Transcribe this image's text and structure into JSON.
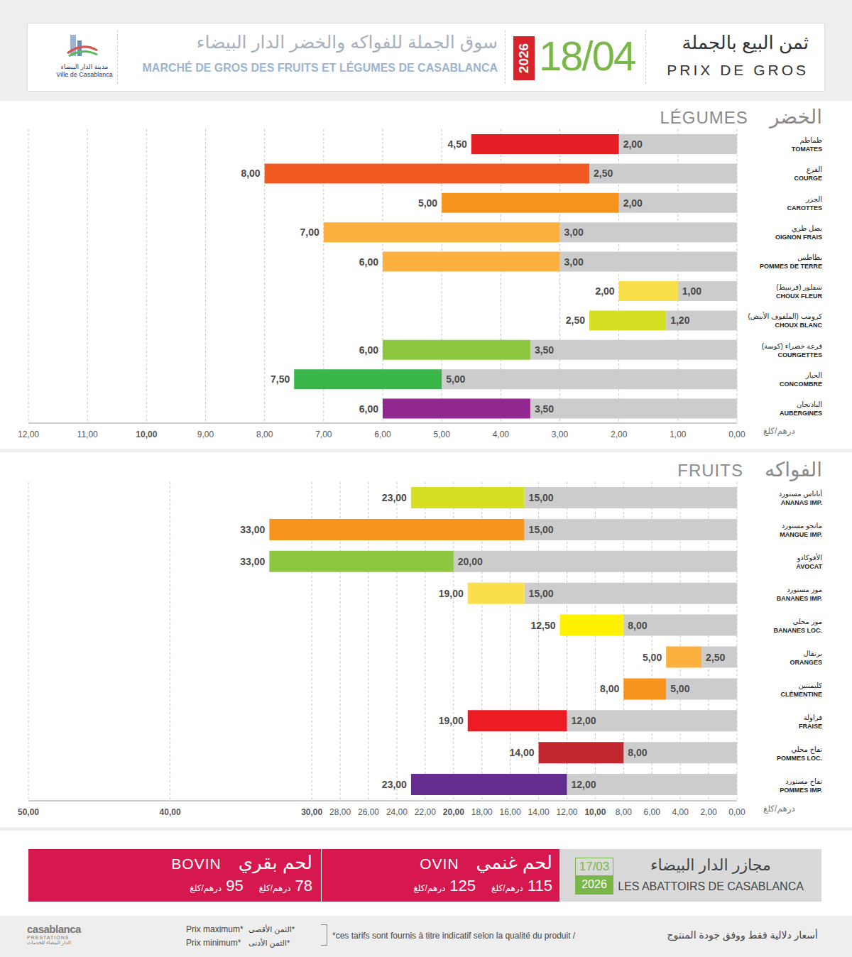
{
  "header": {
    "logo": [
      "مدينة الدار البيضاء",
      "Ville de Casablanca"
    ],
    "title_ar": "سوق الجملة للفواكه والخضر الدار البيضاء",
    "title_fr": "MARCHÉ DE GROS DES FRUITS ET LÉGUMES DE CASABLANCA",
    "year": "2026",
    "date": "18/04",
    "label_ar": "ثمن البيع بالجملة",
    "label_fr": "PRIX DE GROS"
  },
  "chart_data": [
    {
      "type": "bar",
      "orientation": "horizontal",
      "title": "LÉGUMES",
      "title_ar": "الخضر",
      "x_label": "درهم/كلغ",
      "categories": [
        "TOMATES",
        "COURGE",
        "CAROTTES",
        "OIGNON FRAIS",
        "POMMES DE TERRE",
        "CHOUX FLEUR",
        "CHOUX BLANC",
        "COURGETTES",
        "CONCOMBRE",
        "AUBERGINES"
      ],
      "categories_ar": [
        "طماطم",
        "القرع",
        "الجزر",
        "بصل طري",
        "بطاطس",
        "شفلور (قرنبيط)",
        "كرومب (الملفوف الأبيض)",
        "قرعة خضراء (كوسة)",
        "الخيار",
        "الباذنجان"
      ],
      "series": [
        {
          "color": "#cccccc",
          "values": [
            2,
            2.5,
            2,
            3,
            3,
            1,
            1.2,
            3.5,
            5,
            3.5
          ],
          "value_labels": [
            "2,00",
            "2,50",
            "2,00",
            "3,00",
            "3,00",
            "1,00",
            "1,20",
            "3,50",
            "5,00",
            "3,50"
          ]
        },
        {
          "colors": [
            "#e31e24",
            "#f15a22",
            "#f7941d",
            "#fbb040",
            "#fbb040",
            "#f9e04b",
            "#d7df23",
            "#8dc63f",
            "#39b54a",
            "#92278f"
          ],
          "values": [
            4.5,
            8,
            5,
            7,
            6,
            2,
            2.5,
            6,
            7.5,
            6
          ],
          "value_labels": [
            "4,50",
            "8,00",
            "5,00",
            "7,00",
            "6,00",
            "2,00",
            "2,50",
            "6,00",
            "7,50",
            "6,00"
          ]
        }
      ],
      "xlim": [
        12,
        0
      ],
      "xticks": [
        {
          "value": 12,
          "label": "12,00"
        },
        {
          "value": 11,
          "label": "11,00"
        },
        {
          "value": 10,
          "label": "10,00"
        },
        {
          "value": 9,
          "label": "9,00"
        },
        {
          "value": 8,
          "label": "8,00"
        },
        {
          "value": 7,
          "label": "7,00"
        },
        {
          "value": 6,
          "label": "6,00"
        },
        {
          "value": 5,
          "label": "5,00"
        },
        {
          "value": 4,
          "label": "4,00"
        },
        {
          "value": 3,
          "label": "3,00"
        },
        {
          "value": 2,
          "label": "2,00"
        },
        {
          "value": 1,
          "label": "1,00"
        },
        {
          "value": 0,
          "label": "0,00"
        }
      ],
      "grid": true,
      "data_labels": true
    },
    {
      "type": "bar",
      "orientation": "horizontal",
      "title": "FRUITS",
      "title_ar": "الفواكه",
      "x_label": "درهم/كلغ",
      "categories": [
        "ANANAS IMP.",
        "MANGUE IMP.",
        "AVOCAT",
        "BANANES IMP.",
        "BANANES LOC.",
        "ORANGES",
        "CLÉMENTINE",
        "FRAISE",
        "POMMES LOC.",
        "POMMES IMP."
      ],
      "categories_ar": [
        "أناناس مستورد",
        "مانجو مستورد",
        "الأفوكادو",
        "موز مستورد",
        "موز محلي",
        "برتقال",
        "كليمنتين",
        "فراولة",
        "تفاح محلي",
        "تفاح مستورد"
      ],
      "series": [
        {
          "color": "#cccccc",
          "values": [
            15,
            15,
            20,
            15,
            8,
            2.5,
            5,
            12,
            8,
            12
          ],
          "value_labels": [
            "15,00",
            "15,00",
            "20,00",
            "15,00",
            "8,00",
            "2,50",
            "5,00",
            "12,00",
            "8,00",
            "12,00"
          ]
        },
        {
          "colors": [
            "#d7df23",
            "#f7941d",
            "#8dc63f",
            "#f9e04b",
            "#fff200",
            "#fbb040",
            "#f7941d",
            "#ed1c24",
            "#c1272d",
            "#662d91"
          ],
          "values": [
            23,
            33,
            33,
            19,
            12.5,
            5,
            8,
            19,
            14,
            23
          ],
          "value_labels": [
            "23,00",
            "33,00",
            "33,00",
            "19,00",
            "12,50",
            "5,00",
            "8,00",
            "19,00",
            "14,00",
            "23,00"
          ]
        }
      ],
      "xlim": [
        50,
        0
      ],
      "xticks": [
        {
          "value": 50,
          "label": "50,00"
        },
        {
          "value": 40,
          "label": "40,00"
        },
        {
          "value": 30,
          "label": "30,00"
        },
        {
          "value": 28,
          "label": "28,00"
        },
        {
          "value": 26,
          "label": "26,00"
        },
        {
          "value": 24,
          "label": "24,00"
        },
        {
          "value": 22,
          "label": "22,00"
        },
        {
          "value": 20,
          "label": "20,00"
        },
        {
          "value": 18,
          "label": "18,00"
        },
        {
          "value": 16,
          "label": "16,00"
        },
        {
          "value": 14,
          "label": "14,00"
        },
        {
          "value": 12,
          "label": "12,00"
        },
        {
          "value": 10,
          "label": "10,00"
        },
        {
          "value": 8,
          "label": "8,00"
        },
        {
          "value": 6,
          "label": "6,00"
        },
        {
          "value": 4,
          "label": "4,00"
        },
        {
          "value": 2,
          "label": "2,00"
        },
        {
          "value": 0,
          "label": "0,00"
        }
      ],
      "grid": true,
      "data_labels": true
    }
  ],
  "meat": {
    "title_ar": "مجازر الدار البيضاء",
    "title_fr": "LES ABATTOIRS DE CASABLANCA",
    "date": "17/03",
    "year": "2026",
    "unit": "درهم/كلغ",
    "items": [
      {
        "label": "BOVIN",
        "label_ar": "لحم بقري",
        "min": 78,
        "max": 95
      },
      {
        "label": "OVIN",
        "label_ar": "لحم غنمي",
        "min": 115,
        "max": 125
      }
    ]
  },
  "footer": {
    "logo": [
      "casablanca",
      "PRESTATIONS",
      "الدار البيضاء للخدمات"
    ],
    "legend_fr": [
      "Prix maximum*",
      "Prix minimum*"
    ],
    "legend_ar": [
      "*الثمن الأقصى",
      "*الثمن الأدنى"
    ],
    "note_fr": "*ces tarifs sont fournis à titre indicatif selon la qualité du produit /",
    "note_ar": "أسعار دلالية فقط ووفق جودة المنتوج"
  }
}
